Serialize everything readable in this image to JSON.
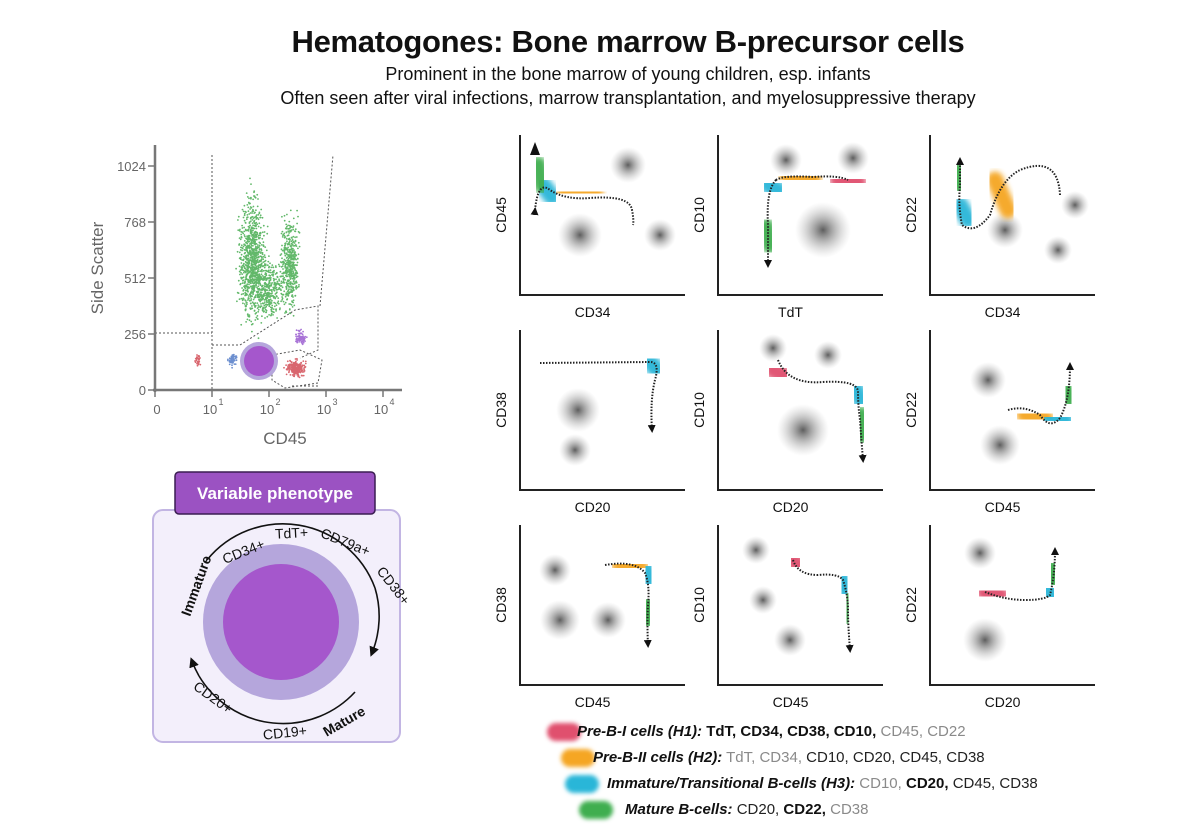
{
  "header": {
    "title": "Hematogones: Bone marrow B-precursor cells",
    "subtitle_lines": [
      "Prominent in the bone marrow of young children, esp. infants",
      "Often seen after viral infections, marrow transplantation, and myelosuppressive therapy"
    ]
  },
  "colors": {
    "h1": "#e0506e",
    "h2": "#f5a623",
    "h3": "#29b6d8",
    "mature": "#3fae4f",
    "purple_dark": "#a557cc",
    "purple_light": "#b5a6dc",
    "panel_bg": "#f3effb",
    "panel_border": "#c2b5e3",
    "label_bg": "#9b52c2",
    "scatter_green": "#62b86a",
    "scatter_pink": "#d9676f",
    "scatter_purple": "#a873d6",
    "scatter_blue": "#6c8fcf",
    "axis_grey": "#777777"
  },
  "scatter": {
    "xlabel": "CD45",
    "ylabel": "Side Scatter",
    "x_ticks": [
      "0",
      "10",
      "10",
      "10",
      "10"
    ],
    "x_tick_exponents": [
      "",
      "1",
      "2",
      "3",
      "4"
    ],
    "y_ticks": [
      "0",
      "256",
      "512",
      "768",
      "1024"
    ]
  },
  "phenotype": {
    "label": "Variable phenotype",
    "markers": [
      "CD34+",
      "TdT+",
      "CD79a+",
      "CD38+",
      "CD19+",
      "CD20+"
    ],
    "immature_label": "Immature",
    "mature_label": "Mature"
  },
  "grid": {
    "panels": [
      {
        "xlabel": "CD34",
        "ylabel": "CD45"
      },
      {
        "xlabel": "TdT",
        "ylabel": "CD10"
      },
      {
        "xlabel": "CD34",
        "ylabel": "CD22"
      },
      {
        "xlabel": "CD20",
        "ylabel": "CD38"
      },
      {
        "xlabel": "CD20",
        "ylabel": "CD10"
      },
      {
        "xlabel": "CD45",
        "ylabel": "CD22"
      },
      {
        "xlabel": "CD45",
        "ylabel": "CD38"
      },
      {
        "xlabel": "CD45",
        "ylabel": "CD10"
      },
      {
        "xlabel": "CD20",
        "ylabel": "CD22"
      }
    ]
  },
  "legend": [
    {
      "name": "Pre-B-I cells (H1):",
      "color_key": "h1",
      "markers": [
        {
          "text": "TdT,",
          "style": "bold"
        },
        {
          "text": "CD34,",
          "style": "bold"
        },
        {
          "text": "CD38,",
          "style": "bold"
        },
        {
          "text": "CD10,",
          "style": "bold"
        },
        {
          "text": "CD45,",
          "style": "dim"
        },
        {
          "text": "CD22",
          "style": "dim"
        }
      ]
    },
    {
      "name": "Pre-B-II cells (H2):",
      "color_key": "h2",
      "markers": [
        {
          "text": "TdT,",
          "style": "dim"
        },
        {
          "text": "CD34,",
          "style": "dim"
        },
        {
          "text": "CD10,",
          "style": "normal"
        },
        {
          "text": "CD20,",
          "style": "normal"
        },
        {
          "text": "CD45,",
          "style": "normal"
        },
        {
          "text": "CD38",
          "style": "normal"
        }
      ]
    },
    {
      "name": "Immature/Transitional B-cells (H3):",
      "color_key": "h3",
      "markers": [
        {
          "text": "CD10,",
          "style": "dim"
        },
        {
          "text": "CD20,",
          "style": "bold"
        },
        {
          "text": "CD45,",
          "style": "normal"
        },
        {
          "text": "CD38",
          "style": "normal"
        }
      ]
    },
    {
      "name": "Mature B-cells:",
      "color_key": "mature",
      "markers": [
        {
          "text": "CD20,",
          "style": "normal"
        },
        {
          "text": "CD22,",
          "style": "bold"
        },
        {
          "text": "CD38",
          "style": "dim"
        }
      ]
    }
  ]
}
